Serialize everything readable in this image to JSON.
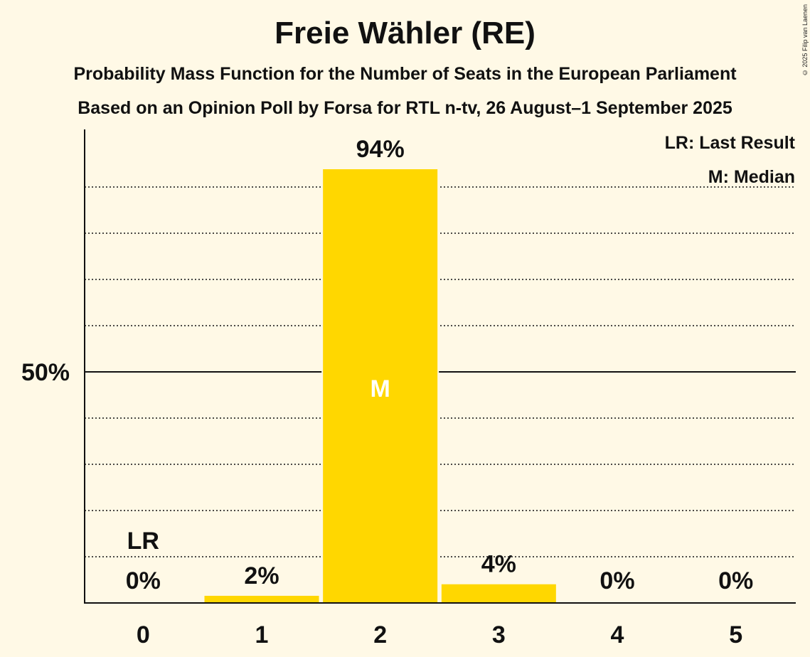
{
  "header": {
    "title": "Freie Wähler (RE)",
    "subtitle1": "Probability Mass Function for the Number of Seats in the European Parliament",
    "subtitle2": "Based on an Opinion Poll by Forsa for RTL n-tv, 26 August–1 September 2025",
    "copyright": "© 2025 Filip van Laenen"
  },
  "legend": {
    "last_result": "LR: Last Result",
    "median": "M: Median"
  },
  "colors": {
    "bar": "#ffd700",
    "background": "#fff9e6",
    "text": "#111111"
  },
  "chart_data": {
    "type": "bar",
    "title": "Freie Wähler (RE)",
    "xlabel": "",
    "ylabel": "",
    "categories": [
      "0",
      "1",
      "2",
      "3",
      "4",
      "5"
    ],
    "values": [
      0,
      1.7,
      94,
      4.2,
      0,
      0
    ],
    "labels": [
      "0%",
      "2%",
      "94%",
      "4%",
      "0%",
      "0%"
    ],
    "ylim": [
      0,
      103
    ],
    "y_ticks": [
      {
        "value": 50,
        "label": "50%"
      }
    ],
    "gridlines": [
      10,
      20,
      30,
      40,
      60,
      70,
      80,
      90
    ],
    "last_result": {
      "category": "0",
      "label": "LR"
    },
    "median": {
      "category": "2",
      "label": "M"
    }
  }
}
